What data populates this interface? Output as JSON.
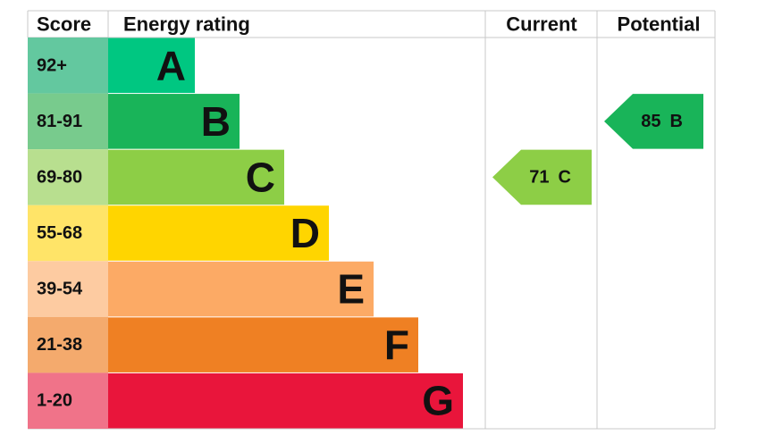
{
  "chart_data": {
    "type": "epc",
    "headers": {
      "score": "Score",
      "rating": "Energy rating",
      "current": "Current",
      "potential": "Potential"
    },
    "bands": [
      {
        "score": "92+",
        "letter": "A",
        "color": "#00c781",
        "score_color": "#63c89f"
      },
      {
        "score": "81-91",
        "letter": "B",
        "color": "#19b459",
        "score_color": "#78cb8d"
      },
      {
        "score": "69-80",
        "letter": "C",
        "color": "#8dce46",
        "score_color": "#b8df8f"
      },
      {
        "score": "55-68",
        "letter": "D",
        "color": "#ffd500",
        "score_color": "#ffe468"
      },
      {
        "score": "39-54",
        "letter": "E",
        "color": "#fcaa65",
        "score_color": "#fdcba1"
      },
      {
        "score": "21-38",
        "letter": "F",
        "color": "#ef8023",
        "score_color": "#f4aa6d"
      },
      {
        "score": "1-20",
        "letter": "G",
        "color": "#e9153b",
        "score_color": "#f07389"
      }
    ],
    "current": {
      "value": 71,
      "rating": "C"
    },
    "potential": {
      "value": 85,
      "rating": "B"
    }
  }
}
